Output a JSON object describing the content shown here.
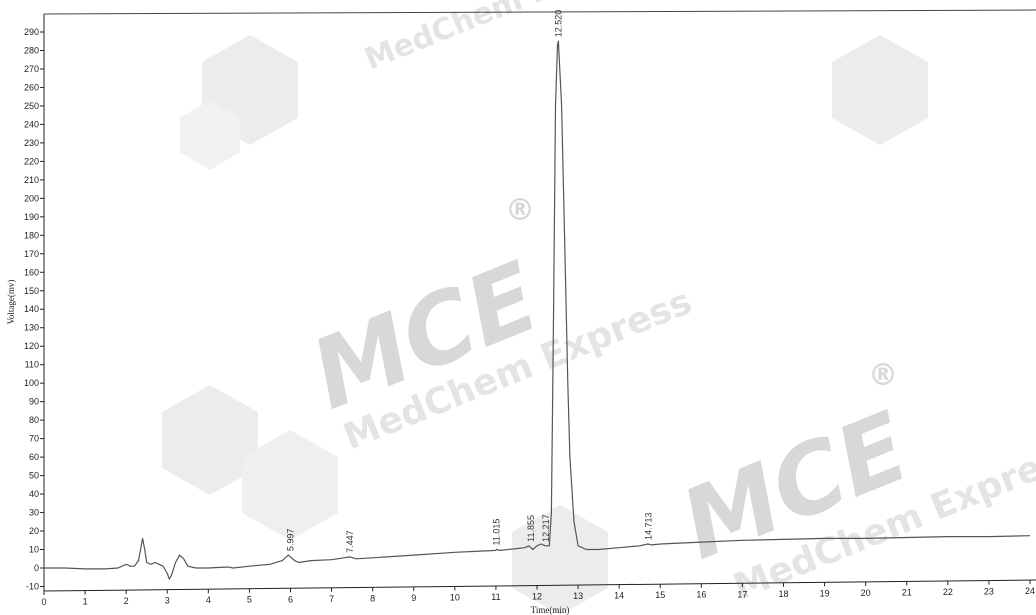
{
  "chart_data": {
    "type": "line",
    "title": "",
    "xlabel": "Time(min)",
    "ylabel": "Voltage(mv)",
    "xlim": [
      0,
      24
    ],
    "ylim": [
      -10,
      290
    ],
    "x_ticks": [
      "0",
      "1",
      "2",
      "3",
      "4",
      "5",
      "6",
      "7",
      "8",
      "9",
      "10",
      "11",
      "12",
      "13",
      "14",
      "15",
      "16",
      "17",
      "18",
      "19",
      "20",
      "21",
      "22",
      "23",
      "24"
    ],
    "y_ticks": [
      "-10",
      "0",
      "10",
      "20",
      "30",
      "40",
      "50",
      "60",
      "70",
      "80",
      "90",
      "100",
      "110",
      "120",
      "130",
      "140",
      "150",
      "160",
      "170",
      "180",
      "190",
      "200",
      "210",
      "220",
      "230",
      "240",
      "250",
      "260",
      "270",
      "280",
      "290"
    ],
    "grid": false,
    "series": [
      {
        "x": [
          0.0,
          0.5,
          1.0,
          1.5,
          1.8,
          2.0,
          2.1,
          2.2,
          2.3,
          2.4,
          2.45,
          2.5,
          2.6,
          2.7,
          2.8,
          2.9,
          3.0,
          3.05,
          3.1,
          3.2,
          3.3,
          3.4,
          3.5,
          3.7,
          4.0,
          4.4,
          4.5,
          4.6,
          5.0,
          5.5,
          5.8,
          5.95,
          6.0,
          6.1,
          6.2,
          6.5,
          7.0,
          7.3,
          7.45,
          7.6,
          8.0,
          9.0,
          10.0,
          10.5,
          11.0,
          11.02,
          11.1,
          11.5,
          11.7,
          11.8,
          11.9,
          12.0,
          12.1,
          12.2,
          12.3,
          12.35,
          12.4,
          12.45,
          12.5,
          12.52,
          12.6,
          12.7,
          12.75,
          12.8,
          12.9,
          13.0,
          13.2,
          13.5,
          14.0,
          14.5,
          14.7,
          14.8,
          15.0,
          16.0,
          17.0,
          18.0,
          19.0,
          20.0,
          21.0,
          22.0,
          23.0,
          24.0
        ],
        "y": [
          0.0,
          0.0,
          -0.5,
          -0.5,
          0.0,
          2.0,
          1.0,
          1.0,
          4.0,
          16.0,
          10.0,
          3.0,
          2.0,
          3.0,
          2.0,
          1.0,
          -3.0,
          -6.0,
          -4.0,
          3.0,
          7.0,
          5.0,
          1.0,
          0.0,
          0.0,
          0.5,
          0.5,
          0.0,
          1.0,
          2.0,
          4.0,
          7.0,
          6.0,
          4.0,
          3.0,
          4.0,
          4.5,
          5.5,
          6.0,
          5.0,
          5.5,
          7.0,
          8.5,
          9.0,
          9.5,
          10.0,
          9.5,
          10.5,
          11.0,
          12.0,
          10.0,
          12.0,
          13.0,
          12.0,
          12.0,
          30.0,
          130.0,
          250.0,
          283.0,
          285.0,
          250.0,
          150.0,
          100.0,
          60.0,
          25.0,
          12.0,
          10.0,
          10.0,
          11.0,
          12.0,
          13.0,
          12.5,
          13.0,
          14.0,
          15.0,
          15.5,
          16.0,
          16.0,
          16.5,
          17.0,
          17.0,
          17.5
        ]
      }
    ],
    "peak_labels": [
      {
        "text": "5.997",
        "x": 5.997,
        "y": 7
      },
      {
        "text": "7.447",
        "x": 7.447,
        "y": 6
      },
      {
        "text": "11.015",
        "x": 11.015,
        "y": 10
      },
      {
        "text": "11.855",
        "x": 11.855,
        "y": 12
      },
      {
        "text": "12.217",
        "x": 12.217,
        "y": 12
      },
      {
        "text": "12.520",
        "x": 12.52,
        "y": 285
      },
      {
        "text": "14.713",
        "x": 14.713,
        "y": 13
      }
    ],
    "colors": {
      "trace": "#555555",
      "axis": "#222222"
    }
  },
  "watermark": {
    "brand": "MCE",
    "sub": "MedChem Express",
    "registered": "®"
  }
}
